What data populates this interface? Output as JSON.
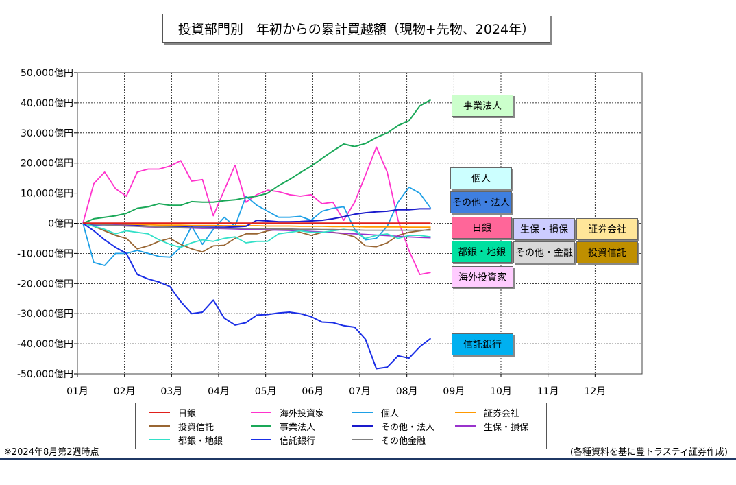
{
  "title": "投資部門別　年初からの累計買越額（現物+先物、2024年）",
  "note_left": "※2024年8月第2週時点",
  "note_right": "(各種資料を基に豊トラスティ証券作成)",
  "chart_data": {
    "type": "line",
    "title": "投資部門別　年初からの累計買越額（現物+先物、2024年）",
    "ylim": [
      -50000,
      50000
    ],
    "y_ticks": [
      50000,
      40000,
      30000,
      20000,
      10000,
      0,
      -10000,
      -20000,
      -30000,
      -40000,
      -50000
    ],
    "y_tick_labels": [
      "50,000億円",
      "40,000億円",
      "30,000億円",
      "20,000億円",
      "10,000億円",
      "0億円",
      "-10,000億円",
      "-20,000億円",
      "-30,000億円",
      "-40,000億円",
      "-50,000億円"
    ],
    "x_tick_labels": [
      "01月",
      "02月",
      "03月",
      "04月",
      "05月",
      "06月",
      "07月",
      "08月",
      "09月",
      "10月",
      "11月",
      "12月"
    ],
    "weeks": 33,
    "grid": true,
    "legend_position": "bottom",
    "series": [
      {
        "name": "日銀",
        "color": "#e0201b",
        "width": 2.5,
        "values": [
          0,
          0,
          0,
          0,
          0,
          0,
          0,
          0,
          0,
          0,
          0,
          0,
          0,
          0,
          0,
          0,
          0,
          0,
          0,
          0,
          0,
          0,
          0,
          0,
          0,
          0,
          0,
          0,
          0,
          0,
          0,
          0,
          0
        ]
      },
      {
        "name": "海外投資家",
        "color": "#ff33cc",
        "width": 1.8,
        "values": [
          0,
          13200,
          17000,
          11500,
          9000,
          17000,
          18000,
          18000,
          19000,
          20800,
          14000,
          14500,
          2500,
          11000,
          19300,
          7000,
          9500,
          11000,
          10500,
          9500,
          9000,
          9500,
          6500,
          7000,
          1000,
          7000,
          16000,
          25300,
          17000,
          1000,
          -9000,
          -17000,
          -16300
        ]
      },
      {
        "name": "個人",
        "color": "#1ea0e6",
        "width": 1.8,
        "values": [
          0,
          -13000,
          -14000,
          -10000,
          -10000,
          -9000,
          -10000,
          -11000,
          -11200,
          -8000,
          -1000,
          -7000,
          -2000,
          2000,
          -1000,
          9000,
          6000,
          4000,
          2000,
          2000,
          2300,
          1000,
          4000,
          5000,
          5500,
          -2000,
          -5500,
          -5000,
          -1000,
          7000,
          12000,
          10000,
          5000
        ]
      },
      {
        "name": "証券会社",
        "color": "#ff9900",
        "width": 1.8,
        "values": [
          0,
          -200,
          -300,
          -400,
          -400,
          -500,
          -500,
          -600,
          -600,
          -600,
          -700,
          -700,
          -700,
          -800,
          -800,
          -800,
          -800,
          -900,
          -900,
          -900,
          -1000,
          -1000,
          -1000,
          -1100,
          -1100,
          -1100,
          -1200,
          -1200,
          -1200,
          -1200,
          -1300,
          -1300,
          -1300
        ]
      },
      {
        "name": "投資信託",
        "color": "#996633",
        "width": 1.8,
        "values": [
          0,
          -1000,
          -2500,
          -4000,
          -5000,
          -8500,
          -7500,
          -6000,
          -5000,
          -7000,
          -8500,
          -9500,
          -7500,
          -7300,
          -5000,
          -3500,
          -3500,
          -2500,
          -2000,
          -2000,
          -3000,
          -4000,
          -3000,
          -3000,
          -3500,
          -4500,
          -7500,
          -7800,
          -6500,
          -4000,
          -3000,
          -2500,
          -2000
        ]
      },
      {
        "name": "事業法人",
        "color": "#1aa858",
        "width": 2,
        "values": [
          0,
          1500,
          2000,
          2500,
          3300,
          5000,
          5500,
          6500,
          6000,
          6000,
          7200,
          7000,
          7000,
          7500,
          7800,
          8500,
          9000,
          10000,
          12500,
          14500,
          16800,
          19000,
          21500,
          24000,
          26300,
          25500,
          26500,
          28500,
          30000,
          32500,
          34000,
          39000,
          41000
        ]
      },
      {
        "name": "その他・法人",
        "color": "#1a1acc",
        "width": 2,
        "values": [
          0,
          -500,
          -500,
          -600,
          -700,
          -800,
          -1000,
          -1200,
          -1200,
          -1200,
          -1300,
          -1300,
          -1300,
          -1300,
          -1200,
          -1000,
          1000,
          800,
          500,
          500,
          600,
          800,
          1000,
          1500,
          2200,
          3000,
          3500,
          3800,
          4000,
          4500,
          4500,
          4800,
          4800
        ]
      },
      {
        "name": "生保・損保",
        "color": "#9933cc",
        "width": 1.8,
        "values": [
          0,
          -200,
          -400,
          -600,
          -800,
          -1000,
          -1200,
          -1300,
          -1400,
          -1500,
          -1600,
          -1700,
          -1700,
          -1800,
          -1900,
          -2000,
          -2100,
          -2200,
          -2300,
          -2400,
          -2500,
          -2700,
          -2900,
          -3100,
          -3300,
          -3500,
          -3700,
          -3900,
          -4100,
          -4300,
          -4500,
          -4700,
          -4800
        ]
      },
      {
        "name": "都銀・地銀",
        "color": "#33e0c8",
        "width": 1.8,
        "values": [
          0,
          -1000,
          -2000,
          -3500,
          -2500,
          -3000,
          -3500,
          -5500,
          -7000,
          -8000,
          -6500,
          -5500,
          -6000,
          -5000,
          -4500,
          -6500,
          -6000,
          -6000,
          -3500,
          -3000,
          -2500,
          -3000,
          -3000,
          -2500,
          -2000,
          -2500,
          -5000,
          -4000,
          -3500,
          -5000,
          -4000,
          -4000,
          -4500
        ]
      },
      {
        "name": "信託銀行",
        "color": "#1a2ee6",
        "width": 2,
        "values": [
          0,
          -2500,
          -5500,
          -8000,
          -10000,
          -17000,
          -18500,
          -19500,
          -21000,
          -26000,
          -30000,
          -29500,
          -25500,
          -31500,
          -33800,
          -33000,
          -30500,
          -30300,
          -29800,
          -29500,
          -30000,
          -31000,
          -32800,
          -33000,
          -34000,
          -34500,
          -38500,
          -48300,
          -47800,
          -44000,
          -44800,
          -41000,
          -38200
        ]
      },
      {
        "name": "その他金融",
        "color": "#808080",
        "width": 1.8,
        "values": [
          0,
          -300,
          -500,
          -700,
          -900,
          -1000,
          -1100,
          -1200,
          -1300,
          -1400,
          -1500,
          -1500,
          -1600,
          -1600,
          -1700,
          -1700,
          -1800,
          -1800,
          -1900,
          -1900,
          -2000,
          -2000,
          -2100,
          -2100,
          -2200,
          -2200,
          -2300,
          -2300,
          -2300,
          -2300,
          -2300,
          -2300,
          -2300
        ]
      }
    ],
    "side_labels": [
      {
        "text": "事業法人",
        "bg": "#ccffcc"
      },
      {
        "text": "個人",
        "bg": "#ccffff"
      },
      {
        "text": "その他・法人",
        "bg": "#3f7fe0"
      },
      {
        "text": "日銀",
        "bg": "#ff6699"
      },
      {
        "text": "生保・損保",
        "bg": "#ccccff"
      },
      {
        "text": "証券会社",
        "bg": "#ffe699"
      },
      {
        "text": "都銀・地銀",
        "bg": "#00e0a0"
      },
      {
        "text": "その他・金融",
        "bg": "#d9d9d9"
      },
      {
        "text": "投資信託",
        "bg": "#bf8f00"
      },
      {
        "text": "海外投資家",
        "bg": "#ffccff"
      },
      {
        "text": "信託銀行",
        "bg": "#00b0f0"
      }
    ]
  }
}
